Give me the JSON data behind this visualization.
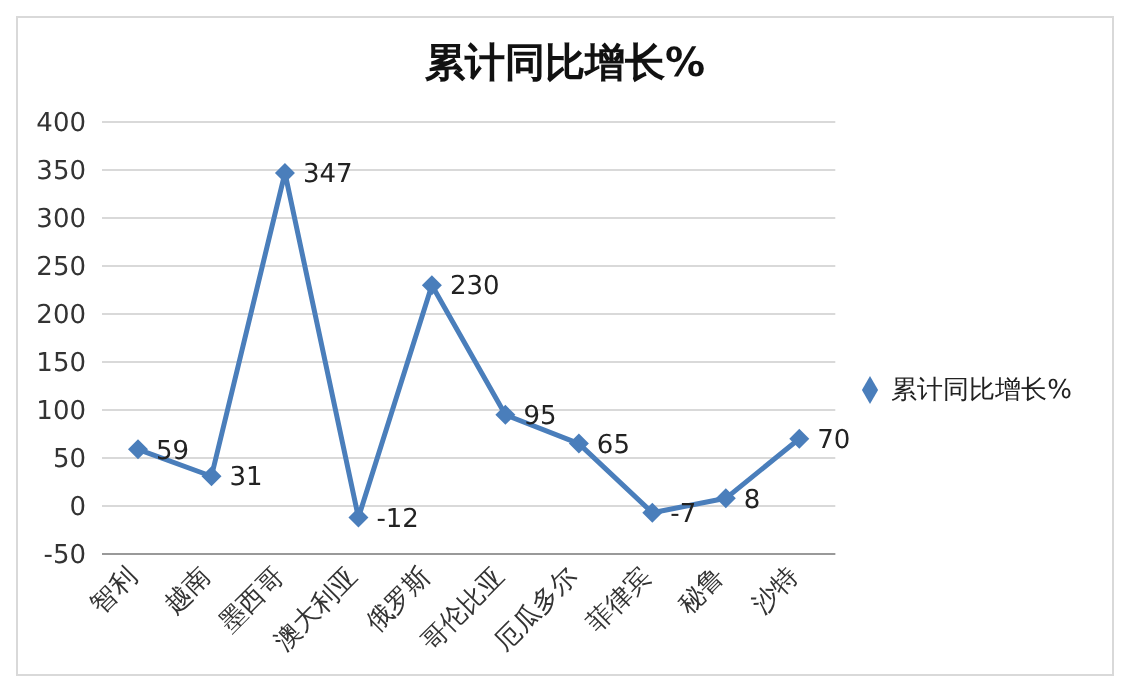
{
  "chart_data": {
    "type": "line",
    "title": "累计同比增长%",
    "categories": [
      "智利",
      "越南",
      "墨西哥",
      "澳大利亚",
      "俄罗斯",
      "哥伦比亚",
      "厄瓜多尔",
      "菲律宾",
      "秘鲁",
      "沙特"
    ],
    "series": [
      {
        "name": "累计同比增长%",
        "color": "#4a7ebb",
        "values": [
          59,
          31,
          347,
          -12,
          230,
          95,
          65,
          -7,
          8,
          70
        ]
      }
    ],
    "ylim": [
      -50,
      400
    ],
    "yticks": [
      -50,
      0,
      50,
      100,
      150,
      200,
      250,
      300,
      350,
      400
    ],
    "grid": "y",
    "legend": "right",
    "marker": "diamond",
    "line_style": "solid",
    "data_labels": true
  }
}
